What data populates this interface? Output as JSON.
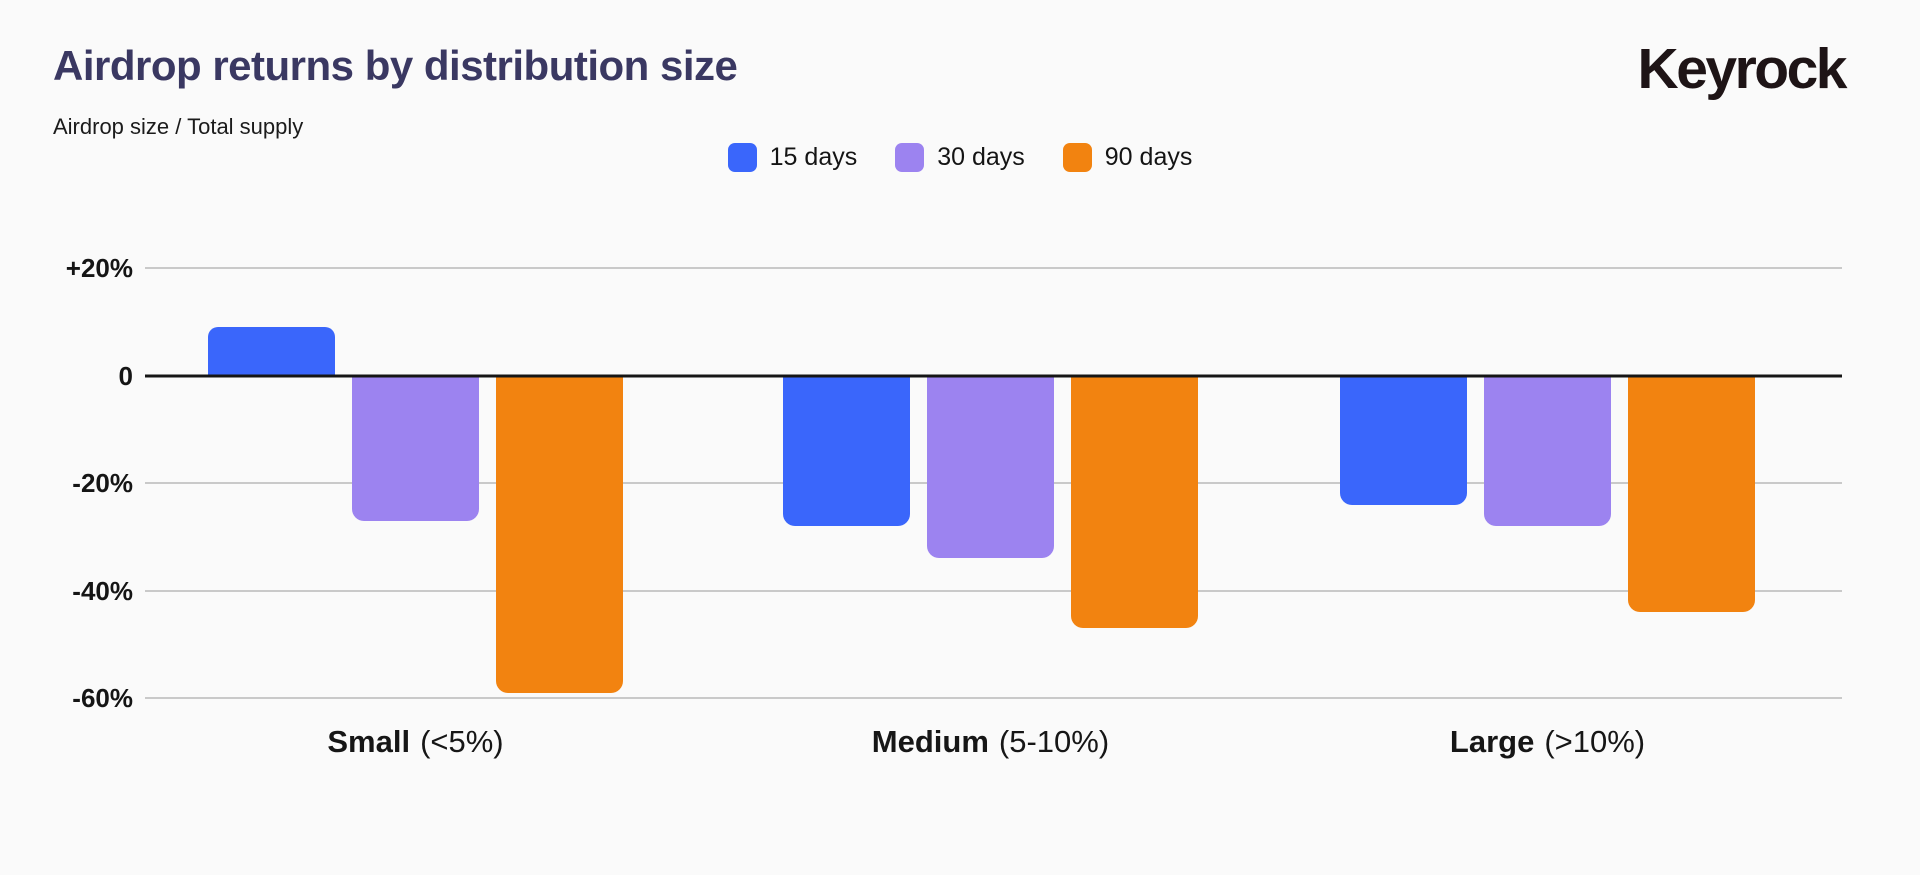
{
  "page": {
    "background": "#FAFAFA"
  },
  "header": {
    "title": "Airdrop returns by distribution size",
    "subtitle": "Airdrop size / Total supply",
    "brand": "Keyrock"
  },
  "colors": {
    "blue": "#3A66FB",
    "purple": "#9C83F0",
    "orange": "#F28310",
    "gridline": "#C9C9C9",
    "zero_line": "#151515",
    "title": "#3A3862"
  },
  "chart_data": {
    "type": "bar",
    "title": "Airdrop returns by distribution size",
    "subtitle": "Airdrop size / Total supply",
    "unit": "%",
    "grid": true,
    "legend_position": "top-center",
    "ylim": [
      -60,
      20
    ],
    "yticks": [
      {
        "value": 20,
        "label": "+20%"
      },
      {
        "value": 0,
        "label": "0"
      },
      {
        "value": -20,
        "label": "-20%"
      },
      {
        "value": -40,
        "label": "-40%"
      },
      {
        "value": -60,
        "label": "-60%"
      }
    ],
    "categories": [
      {
        "name": "Small",
        "qualifier": "(<5%)"
      },
      {
        "name": "Medium",
        "qualifier": "(5-10%)"
      },
      {
        "name": "Large",
        "qualifier": "(>10%)"
      }
    ],
    "series": [
      {
        "name": "15 days",
        "color": "#3A66FB",
        "values": [
          9,
          -28,
          -24
        ]
      },
      {
        "name": "30 days",
        "color": "#9C83F0",
        "values": [
          -27,
          -34,
          -28
        ]
      },
      {
        "name": "90 days",
        "color": "#F28310",
        "values": [
          -59,
          -47,
          -44
        ]
      }
    ]
  }
}
